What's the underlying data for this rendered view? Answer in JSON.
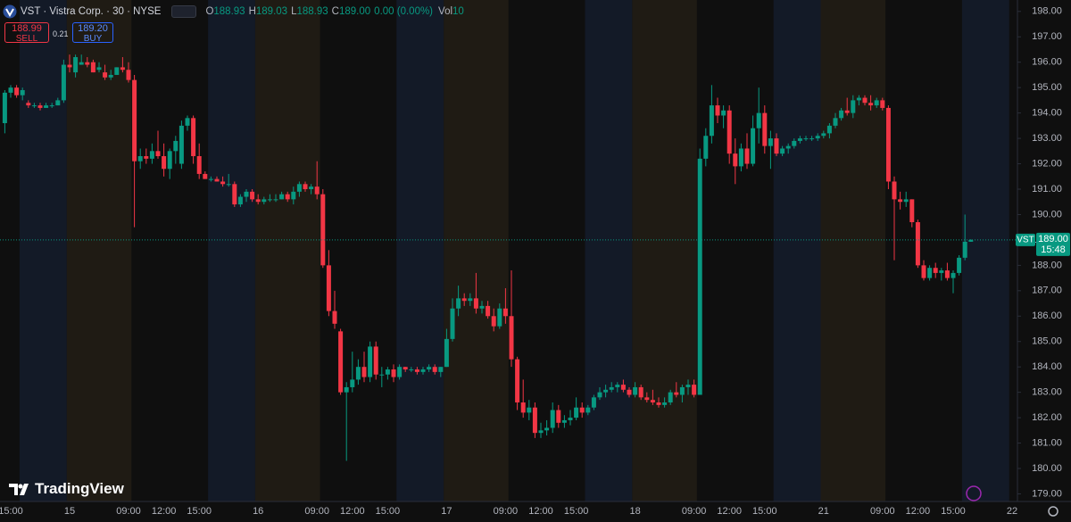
{
  "header": {
    "symbol_title": "VST · Vistra Corp. · 30 · NYSE",
    "o_key": "O",
    "o": "188.93",
    "h_key": "H",
    "h": "189.03",
    "l_key": "L",
    "l": "188.93",
    "c_key": "C",
    "c": "189.00",
    "change": "0.00 (0.00%)",
    "vol_key": "Vol",
    "vol": "10"
  },
  "trade": {
    "sell_price": "188.99",
    "sell": "SELL",
    "spread": "0.21",
    "buy_price": "189.20",
    "buy": "BUY"
  },
  "watermark": "TradingView",
  "chart_data": {
    "type": "candlestick",
    "up_color": "#089981",
    "down_color": "#f23645",
    "categories": [
      null,
      "15:00",
      null,
      null,
      null,
      null,
      null,
      null,
      null,
      null,
      null,
      "15",
      null,
      null,
      null,
      null,
      null,
      null,
      null,
      null,
      null,
      "09:00",
      null,
      null,
      null,
      null,
      null,
      "12:00",
      null,
      null,
      null,
      null,
      null,
      "15:00",
      null,
      null,
      null,
      null,
      null,
      null,
      null,
      null,
      null,
      "16",
      null,
      null,
      null,
      null,
      null,
      null,
      null,
      null,
      null,
      "09:00",
      null,
      null,
      null,
      null,
      null,
      "12:00",
      null,
      null,
      null,
      null,
      null,
      "15:00",
      null,
      null,
      null,
      null,
      null,
      null,
      null,
      null,
      null,
      "17",
      null,
      null,
      null,
      null,
      null,
      null,
      null,
      null,
      null,
      "09:00",
      null,
      null,
      null,
      null,
      null,
      "12:00",
      null,
      null,
      null,
      null,
      null,
      "15:00",
      null,
      null,
      null,
      null,
      null,
      null,
      null,
      null,
      null,
      "18",
      null,
      null,
      null,
      null,
      null,
      null,
      null,
      null,
      null,
      "09:00",
      null,
      null,
      null,
      null,
      null,
      "12:00",
      null,
      null,
      null,
      null,
      null,
      "15:00",
      null,
      null,
      null,
      null,
      null,
      null,
      null,
      null,
      null,
      "21",
      null,
      null,
      null,
      null,
      null,
      null,
      null,
      null,
      null,
      "09:00",
      null,
      null,
      null,
      null,
      null,
      "12:00",
      null,
      null,
      null,
      null,
      null,
      "15:00",
      null,
      null,
      null,
      null,
      null,
      null,
      null,
      null,
      null,
      "22"
    ],
    "open": [
      193.6,
      194.8,
      195.0,
      194.7,
      194.4,
      194.3,
      194.3,
      194.2,
      194.3,
      194.3,
      194.5,
      195.9,
      195.6,
      195.9,
      196.0,
      196.0,
      195.7,
      195.6,
      195.4,
      195.5,
      195.8,
      195.7,
      195.3,
      192.1,
      192.3,
      192.2,
      192.5,
      192.3,
      191.8,
      192.5,
      192.0,
      193.5,
      193.8,
      192.3,
      191.6,
      191.4,
      191.4,
      191.3,
      191.2,
      191.2,
      190.4,
      190.7,
      190.9,
      190.6,
      190.5,
      190.6,
      190.6,
      190.6,
      190.8,
      190.6,
      190.9,
      191.2,
      191.0,
      191.1,
      190.8,
      188.0,
      186.2,
      185.4,
      183.0,
      183.2,
      183.5,
      184.0,
      183.6,
      184.8,
      183.7,
      183.7,
      183.9,
      183.6,
      184.0,
      183.9,
      183.9,
      183.8,
      183.9,
      184.0,
      183.8,
      184.0,
      185.1,
      186.3,
      186.7,
      186.6,
      186.7,
      186.3,
      186.4,
      186.0,
      185.6,
      186.3,
      186.0,
      184.3,
      182.6,
      182.2,
      182.4,
      181.4,
      181.5,
      181.6,
      182.3,
      181.8,
      181.9,
      182.0,
      182.4,
      182.2,
      182.4,
      182.8,
      183.0,
      183.1,
      183.2,
      183.3,
      183.1,
      182.9,
      183.2,
      182.8,
      182.7,
      182.6,
      182.5,
      182.6,
      183.0,
      182.9,
      183.2,
      183.3,
      182.9,
      192.2,
      193.1,
      194.3,
      193.9,
      194.1,
      192.4,
      191.9,
      192.6,
      192.0,
      193.4,
      194.0,
      192.7,
      193.0,
      192.4,
      192.6,
      192.7,
      192.9,
      193.0,
      193.0,
      193.0,
      193.1,
      193.2,
      193.5,
      193.8,
      194.1,
      194.0,
      194.5,
      194.6,
      194.4,
      194.3,
      194.5,
      194.2,
      191.3,
      190.6,
      190.5,
      190.6,
      189.7,
      188.0,
      187.5,
      187.9,
      187.7,
      187.8,
      187.5,
      187.7,
      188.3,
      188.93,
      null,
      null,
      null,
      null,
      null,
      null,
      null
    ],
    "high": [
      194.9,
      195.1,
      195.1,
      195.0,
      194.5,
      194.4,
      194.4,
      194.4,
      194.4,
      194.6,
      196.1,
      196.3,
      196.3,
      196.3,
      196.2,
      196.1,
      196.0,
      195.9,
      195.7,
      195.8,
      196.2,
      196.0,
      195.5,
      192.6,
      192.6,
      192.8,
      193.3,
      192.8,
      192.6,
      193.1,
      193.7,
      193.9,
      193.9,
      192.8,
      191.7,
      191.5,
      191.5,
      191.5,
      191.6,
      191.3,
      190.8,
      191.0,
      191.0,
      190.8,
      190.7,
      190.8,
      190.8,
      190.9,
      190.9,
      191.1,
      191.3,
      191.3,
      191.2,
      192.1,
      191.0,
      188.6,
      187.0,
      185.5,
      183.4,
      184.6,
      184.3,
      184.6,
      185.0,
      185.0,
      184.0,
      184.0,
      184.1,
      184.1,
      184.0,
      184.0,
      184.0,
      184.0,
      184.1,
      184.1,
      184.0,
      185.5,
      186.7,
      187.2,
      186.9,
      186.9,
      187.7,
      186.6,
      186.6,
      186.3,
      186.5,
      187.1,
      187.8,
      184.4,
      183.5,
      182.7,
      182.6,
      181.8,
      181.9,
      182.6,
      182.5,
      182.1,
      182.3,
      182.8,
      182.6,
      182.5,
      182.9,
      183.2,
      183.3,
      183.4,
      183.4,
      183.5,
      183.2,
      183.4,
      183.3,
      183.0,
      183.1,
      182.8,
      182.8,
      183.1,
      183.4,
      183.3,
      183.5,
      183.5,
      192.6,
      193.4,
      195.1,
      194.6,
      194.3,
      194.3,
      193.0,
      192.8,
      193.2,
      193.9,
      195.0,
      194.3,
      193.3,
      193.2,
      192.7,
      192.8,
      193.0,
      193.1,
      193.1,
      193.1,
      193.2,
      193.3,
      193.6,
      194.0,
      194.2,
      194.6,
      194.7,
      194.7,
      194.7,
      194.7,
      194.6,
      194.6,
      194.3,
      191.5,
      190.9,
      190.9,
      190.6,
      189.8,
      188.2,
      188.0,
      188.1,
      187.9,
      188.1,
      187.8,
      188.4,
      190.0,
      189.03,
      null,
      null,
      null,
      null,
      null,
      null,
      null
    ],
    "low": [
      193.2,
      194.6,
      194.6,
      194.5,
      194.2,
      194.2,
      194.1,
      194.2,
      194.2,
      194.3,
      194.4,
      195.6,
      195.4,
      195.9,
      195.8,
      195.6,
      195.6,
      195.3,
      195.3,
      195.5,
      195.6,
      195.2,
      189.5,
      191.8,
      192.0,
      192.0,
      192.2,
      191.5,
      191.4,
      192.0,
      191.8,
      193.3,
      192.0,
      191.4,
      191.4,
      191.3,
      191.3,
      191.1,
      191.1,
      190.3,
      190.3,
      190.5,
      190.5,
      190.4,
      190.4,
      190.5,
      190.5,
      190.6,
      190.5,
      190.4,
      190.7,
      190.9,
      190.8,
      190.6,
      187.9,
      186.0,
      185.5,
      182.9,
      180.3,
      183.0,
      183.3,
      183.4,
      183.4,
      183.5,
      183.2,
      183.5,
      183.4,
      183.5,
      183.8,
      183.8,
      183.7,
      183.7,
      183.8,
      183.7,
      183.6,
      184.0,
      185.0,
      186.0,
      186.4,
      186.4,
      186.1,
      186.1,
      185.9,
      185.4,
      185.5,
      185.7,
      184.0,
      182.3,
      182.0,
      181.9,
      181.2,
      181.2,
      181.3,
      181.4,
      181.6,
      181.6,
      181.7,
      181.9,
      182.0,
      182.1,
      182.3,
      182.7,
      182.8,
      183.0,
      183.0,
      183.0,
      182.8,
      182.8,
      182.7,
      182.6,
      182.5,
      182.4,
      182.4,
      182.5,
      182.8,
      182.6,
      182.9,
      182.8,
      182.9,
      191.9,
      192.8,
      193.6,
      193.4,
      192.0,
      191.2,
      191.7,
      191.8,
      191.9,
      192.8,
      192.4,
      191.8,
      192.3,
      192.3,
      192.4,
      192.6,
      192.8,
      192.9,
      192.9,
      192.9,
      193.0,
      193.0,
      193.4,
      193.7,
      193.9,
      193.8,
      194.3,
      194.3,
      194.1,
      194.2,
      194.1,
      191.0,
      188.2,
      190.2,
      190.3,
      189.5,
      187.9,
      187.4,
      187.4,
      187.5,
      187.4,
      187.4,
      186.9,
      187.6,
      188.2,
      188.93,
      null,
      null,
      null,
      null,
      null,
      null,
      null
    ],
    "close": [
      194.8,
      195.0,
      194.7,
      194.9,
      194.3,
      194.3,
      194.2,
      194.3,
      194.3,
      194.5,
      195.9,
      195.8,
      196.2,
      196.0,
      195.9,
      195.6,
      195.8,
      195.4,
      195.5,
      195.8,
      195.7,
      195.3,
      192.1,
      192.3,
      192.2,
      192.5,
      192.3,
      191.8,
      192.5,
      192.9,
      193.5,
      193.8,
      192.3,
      191.6,
      191.4,
      191.4,
      191.3,
      191.2,
      191.2,
      190.4,
      190.7,
      190.9,
      190.6,
      190.5,
      190.6,
      190.6,
      190.6,
      190.8,
      190.6,
      190.9,
      191.2,
      191.0,
      191.1,
      190.8,
      188.0,
      186.2,
      185.7,
      183.0,
      183.2,
      183.5,
      184.0,
      183.6,
      184.8,
      183.7,
      183.7,
      183.9,
      183.6,
      184.0,
      183.9,
      183.9,
      183.8,
      183.9,
      184.0,
      183.8,
      184.0,
      185.1,
      186.3,
      186.7,
      186.6,
      186.7,
      186.3,
      186.4,
      186.0,
      185.6,
      186.3,
      186.0,
      184.3,
      182.6,
      182.2,
      182.4,
      181.4,
      181.5,
      181.6,
      182.3,
      181.8,
      181.9,
      182.0,
      182.4,
      182.2,
      182.4,
      182.8,
      183.0,
      183.1,
      183.2,
      183.3,
      183.1,
      182.9,
      183.2,
      182.8,
      182.7,
      182.6,
      182.5,
      182.6,
      183.0,
      182.9,
      183.2,
      183.3,
      182.9,
      192.2,
      193.1,
      194.3,
      193.9,
      194.1,
      192.4,
      191.9,
      192.6,
      192.0,
      193.4,
      194.0,
      192.7,
      193.0,
      192.4,
      192.6,
      192.7,
      192.9,
      193.0,
      193.0,
      193.0,
      193.1,
      193.2,
      193.5,
      193.8,
      194.1,
      194.0,
      194.5,
      194.6,
      194.4,
      194.3,
      194.5,
      194.2,
      191.3,
      190.6,
      190.5,
      190.6,
      189.7,
      188.0,
      187.5,
      187.9,
      187.7,
      187.8,
      187.5,
      187.7,
      188.3,
      188.93,
      189.0,
      null,
      null,
      null,
      null,
      null,
      null,
      null
    ],
    "ylim": [
      178.7,
      198.45
    ],
    "yticks": [
      {
        "value": 179,
        "label": "179.00"
      },
      {
        "value": 180,
        "label": "180.00"
      },
      {
        "value": 181,
        "label": "181.00"
      },
      {
        "value": 182,
        "label": "182.00"
      },
      {
        "value": 183,
        "label": "183.00"
      },
      {
        "value": 184,
        "label": "184.00"
      },
      {
        "value": 185,
        "label": "185.00"
      },
      {
        "value": 186,
        "label": "186.00"
      },
      {
        "value": 187,
        "label": "187.00"
      },
      {
        "value": 188,
        "label": "188.00"
      },
      {
        "value": 189,
        "label": "189.00"
      },
      {
        "value": 190,
        "label": "190.00"
      },
      {
        "value": 191,
        "label": "191.00"
      },
      {
        "value": 192,
        "label": "192.00"
      },
      {
        "value": 193,
        "label": "193.00"
      },
      {
        "value": 194,
        "label": "194.00"
      },
      {
        "value": 195,
        "label": "195.00"
      },
      {
        "value": 196,
        "label": "196.00"
      },
      {
        "value": 197,
        "label": "197.00"
      },
      {
        "value": 198,
        "label": "198.00"
      }
    ],
    "last_price": {
      "symbol": "VST",
      "value": 189.0,
      "label": "189.00",
      "countdown": "15:48",
      "color": "#089981"
    }
  }
}
